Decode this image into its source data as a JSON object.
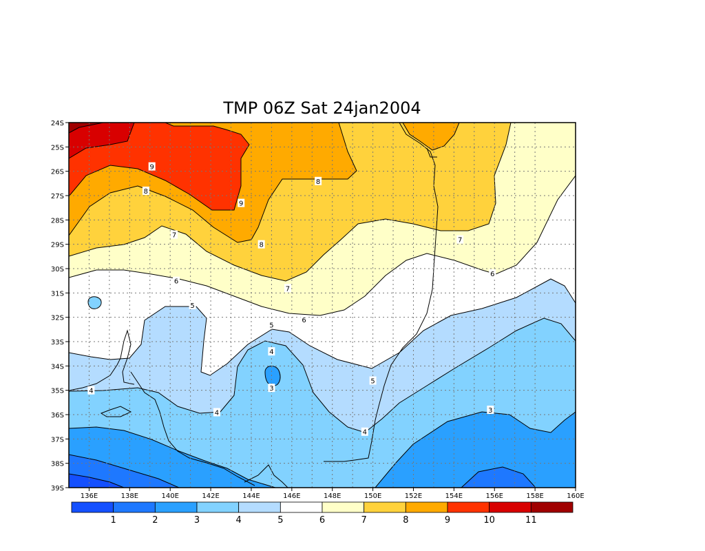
{
  "title": "TMP 06Z Sat 24jan2004",
  "lat_labels": [
    "24S",
    "25S",
    "26S",
    "27S",
    "28S",
    "29S",
    "30S",
    "31S",
    "32S",
    "33S",
    "34S",
    "35S",
    "36S",
    "37S",
    "38S",
    "39S"
  ],
  "lon_labels": [
    "136E",
    "138E",
    "140E",
    "142E",
    "144E",
    "146E",
    "148E",
    "150E",
    "152E",
    "154E",
    "156E",
    "158E",
    "160E"
  ],
  "palette": [
    "#1450ff",
    "#1e78ff",
    "#2aa0ff",
    "#82d2ff",
    "#b4dcff",
    "#ffffff",
    "#ffffc8",
    "#ffd23c",
    "#ffaa00",
    "#ff3200",
    "#d80000",
    "#a00000"
  ],
  "colorbar_labels": [
    "1",
    "2",
    "3",
    "4",
    "5",
    "6",
    "7",
    "8",
    "9",
    "10",
    "11"
  ],
  "contour_labels": [
    {
      "text": "9",
      "lon": 139.1,
      "lat": -25.8
    },
    {
      "text": "9",
      "lon": 143.5,
      "lat": -27.3
    },
    {
      "text": "8",
      "lon": 138.8,
      "lat": -26.8
    },
    {
      "text": "8",
      "lon": 147.3,
      "lat": -26.4
    },
    {
      "text": "8",
      "lon": 144.5,
      "lat": -29.0
    },
    {
      "text": "7",
      "lon": 140.2,
      "lat": -28.6
    },
    {
      "text": "7",
      "lon": 154.3,
      "lat": -28.8
    },
    {
      "text": "7",
      "lon": 145.8,
      "lat": -30.8
    },
    {
      "text": "6",
      "lon": 140.3,
      "lat": -30.5
    },
    {
      "text": "6",
      "lon": 146.6,
      "lat": -32.1
    },
    {
      "text": "6",
      "lon": 155.9,
      "lat": -30.2
    },
    {
      "text": "5",
      "lon": 141.1,
      "lat": -31.5
    },
    {
      "text": "5",
      "lon": 145.0,
      "lat": -32.3
    },
    {
      "text": "5",
      "lon": 150.0,
      "lat": -34.6
    },
    {
      "text": "4",
      "lon": 145.0,
      "lat": -33.4
    },
    {
      "text": "4",
      "lon": 136.1,
      "lat": -35.0
    },
    {
      "text": "4",
      "lon": 142.3,
      "lat": -35.9
    },
    {
      "text": "4",
      "lon": 149.6,
      "lat": -36.7
    },
    {
      "text": "3",
      "lon": 145.0,
      "lat": -34.9
    },
    {
      "text": "3",
      "lon": 155.8,
      "lat": -35.8
    }
  ]
}
